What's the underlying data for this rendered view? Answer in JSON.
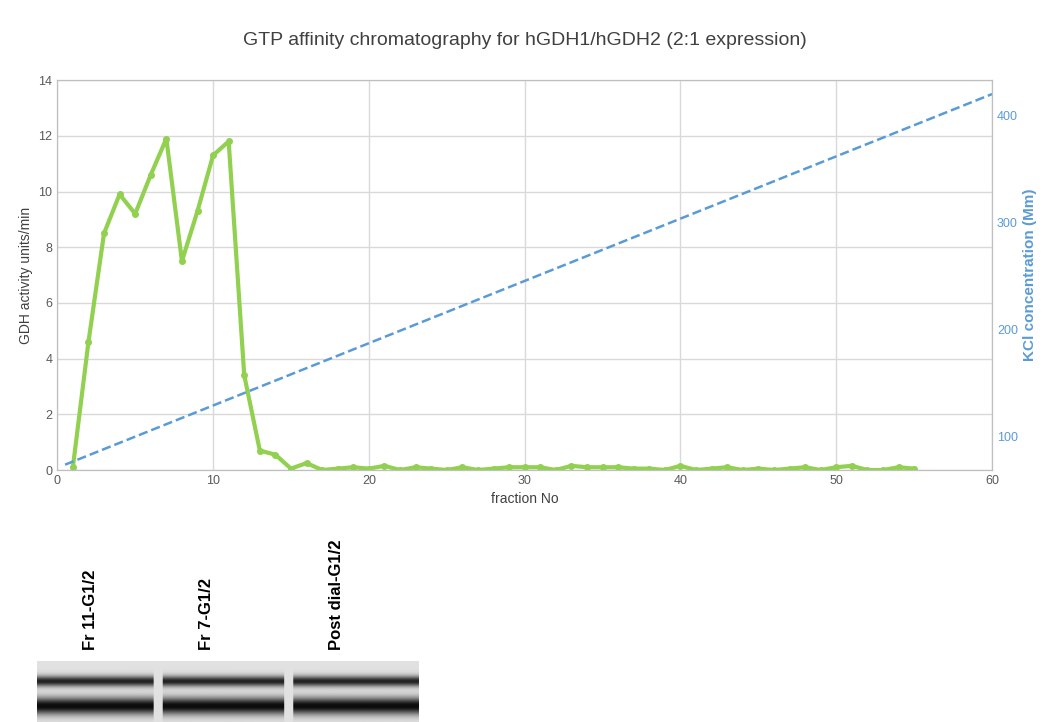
{
  "chart_data": {
    "type": "line",
    "title": "GTP affinity chromatography for hGDH1/hGDH2 (2:1 expression)",
    "x_label": "fraction No",
    "y_label": "GDH activity units/min",
    "y2_label": "KCl concentration (Mm)",
    "xlim": [
      0,
      60
    ],
    "xticks": [
      0,
      10,
      20,
      30,
      40,
      50,
      60
    ],
    "ylim": [
      0,
      14
    ],
    "yticks": [
      0,
      2,
      4,
      6,
      8,
      10,
      12,
      14
    ],
    "y2lim": [
      69,
      433
    ],
    "y2ticks": [
      100,
      200,
      300,
      400
    ],
    "grid": true,
    "series": [
      {
        "color": "#92d050",
        "marker": "circle",
        "line_style": "solid",
        "x": [
          1,
          2,
          3,
          4,
          5,
          6,
          7,
          8,
          9,
          10,
          11,
          12,
          13,
          14,
          15,
          16,
          17,
          18,
          19,
          20,
          21,
          22,
          23,
          24,
          25,
          26,
          27,
          28,
          29,
          30,
          31,
          32,
          33,
          34,
          35,
          36,
          37,
          38,
          39,
          40,
          41,
          42,
          43,
          44,
          45,
          46,
          47,
          48,
          49,
          50,
          51,
          52,
          53,
          54,
          55
        ],
        "values": [
          0.1,
          4.6,
          8.5,
          9.9,
          9.2,
          10.6,
          11.9,
          7.5,
          9.3,
          11.3,
          11.8,
          3.4,
          0.7,
          0.55,
          0.05,
          0.25,
          0.0,
          0.05,
          0.1,
          0.05,
          0.15,
          0.0,
          0.1,
          0.05,
          0.0,
          0.1,
          0.0,
          0.05,
          0.1,
          0.1,
          0.1,
          0.0,
          0.15,
          0.1,
          0.1,
          0.1,
          0.05,
          0.05,
          0.0,
          0.15,
          0.0,
          0.05,
          0.1,
          0.0,
          0.05,
          0.0,
          0.05,
          0.1,
          0.0,
          0.1,
          0.15,
          0.0,
          0.0,
          0.1,
          0.05
        ]
      },
      {
        "color": "#5b9bd5",
        "marker": "none",
        "line_style": "dashed",
        "axis": "y2",
        "x": [
          0.5,
          60
        ],
        "values": [
          74,
          420
        ]
      }
    ]
  },
  "gel": {
    "lane_labels": [
      "Fr 11-G1/2",
      "Fr 7-G1/2",
      "Post dial-G1/2"
    ]
  }
}
